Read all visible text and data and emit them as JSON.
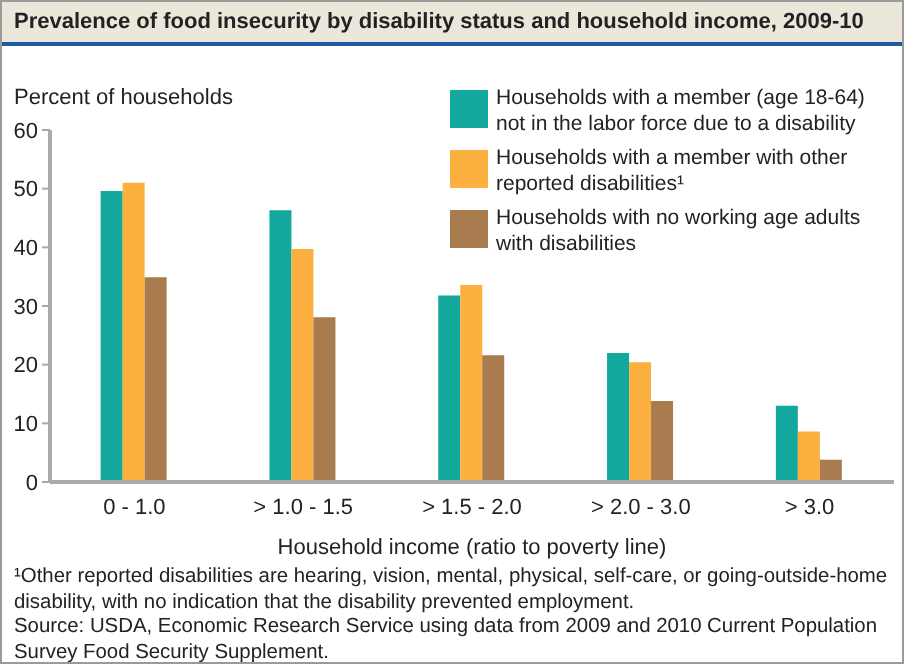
{
  "chart_data": {
    "type": "bar",
    "title": "Prevalence of food insecurity by disability status and household income, 2009-10",
    "ylabel": "Percent of households",
    "xlabel": "Household income (ratio to poverty line)",
    "categories": [
      "0 - 1.0",
      "> 1.0 - 1.5",
      "> 1.5 - 2.0",
      "> 2.0 - 3.0",
      "> 3.0"
    ],
    "series": [
      {
        "name": "Households with a member (age 18-64) not in the labor force due to a disability",
        "color": "#13a89e",
        "values": [
          49.6,
          46.3,
          31.8,
          22.0,
          13.0
        ]
      },
      {
        "name": "Households with a member with other reported disabilities¹",
        "color": "#fbb040",
        "values": [
          51.0,
          39.7,
          33.6,
          20.4,
          8.6
        ]
      },
      {
        "name": "Households with no working age adults with disabilities",
        "color": "#a97c50",
        "values": [
          34.9,
          28.1,
          21.6,
          13.8,
          3.8
        ]
      }
    ],
    "ylim": [
      0,
      60
    ],
    "yticks": [
      0,
      10,
      20,
      30,
      40,
      50,
      60
    ],
    "legend": "top right",
    "annotations": [
      "¹Other reported disabilities are hearing, vision, mental, physical, self-care, or going-outside-home disability, with no indication that the disability prevented employment.",
      "Source: USDA, Economic Research Service using data from 2009 and 2010 Current Population Survey Food Security Supplement."
    ]
  }
}
